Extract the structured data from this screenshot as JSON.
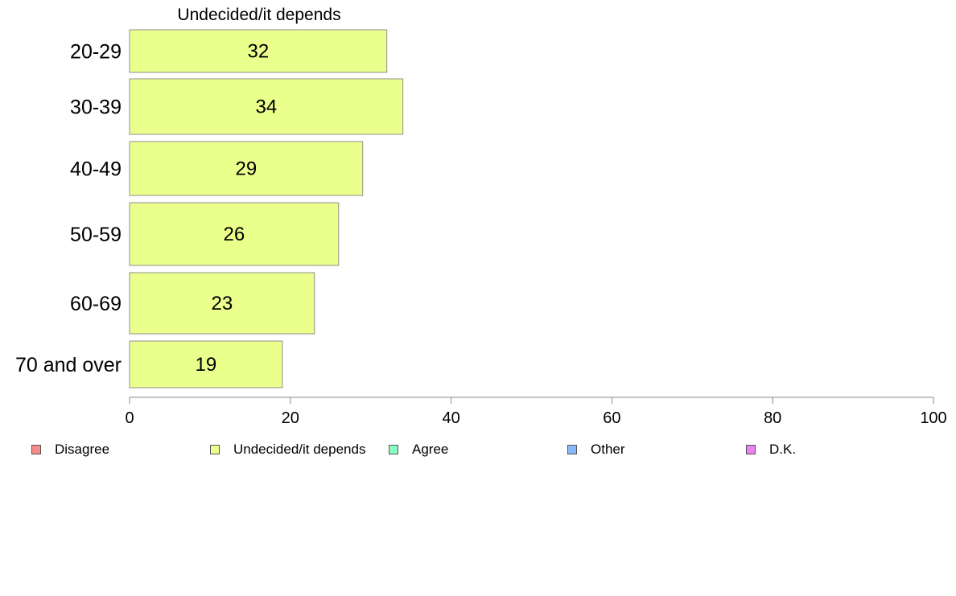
{
  "chart_data": {
    "type": "bar",
    "orientation": "horizontal",
    "title": "Undecided/it depends",
    "categories": [
      "20-29",
      "30-39",
      "40-49",
      "50-59",
      "60-69",
      "70 and over"
    ],
    "series": [
      {
        "name": "Undecided/it depends",
        "values": [
          32,
          34,
          29,
          26,
          23,
          19
        ],
        "color": "#eaff8c"
      }
    ],
    "data_labels": [
      "32",
      "34",
      "29",
      "26",
      "23",
      "19"
    ],
    "xlim": [
      0,
      100
    ],
    "x_ticks": [
      "0",
      "20",
      "40",
      "60",
      "80",
      "100"
    ],
    "grid": false,
    "legend_position": "bottom",
    "legend": [
      {
        "label": "Disagree",
        "color": "#f88a8a"
      },
      {
        "label": "Undecided/it depends",
        "color": "#eaff8c"
      },
      {
        "label": "Agree",
        "color": "#8affbf"
      },
      {
        "label": "Other",
        "color": "#8ab8f8"
      },
      {
        "label": "D.K.",
        "color": "#ee7ff0"
      }
    ]
  }
}
